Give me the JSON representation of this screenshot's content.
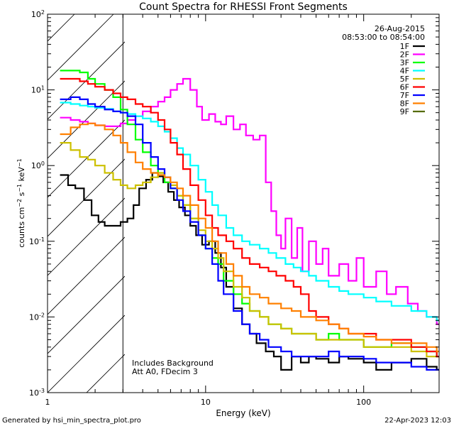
{
  "chart_data": {
    "type": "line",
    "title": "Count Spectra for RHESSI Front Segments",
    "xlabel": "Energy (keV)",
    "ylabel": "counts cm-2 s-1 keV-1",
    "x_scale": "log",
    "y_scale": "log",
    "xlim": [
      1,
      300
    ],
    "ylim": [
      0.001,
      100
    ],
    "x_ticks": [
      {
        "value": 1,
        "label": "1"
      },
      {
        "value": 10,
        "label": "10"
      },
      {
        "value": 100,
        "label": "100"
      }
    ],
    "y_ticks": [
      {
        "value": 100,
        "label": "10",
        "exp": "2"
      },
      {
        "value": 10,
        "label": "10",
        "exp": "1"
      },
      {
        "value": 1,
        "label": "10",
        "exp": "0"
      },
      {
        "value": 0.1,
        "label": "10",
        "exp": "-1"
      },
      {
        "value": 0.01,
        "label": "10",
        "exp": "-2"
      },
      {
        "value": 0.001,
        "label": "10",
        "exp": "-3"
      }
    ],
    "threshold_energy": 3,
    "date": "26-Aug-2015",
    "time_range": "08:53:00 to 08:54:00",
    "annotations": [
      "Includes Background",
      "Att A0, FDecim 3"
    ],
    "series": [
      {
        "name": "1F",
        "color": "#000000",
        "x": [
          1.2,
          1.35,
          1.5,
          1.7,
          1.9,
          2.1,
          2.3,
          2.6,
          2.9,
          3.2,
          3.5,
          3.8,
          4.2,
          4.6,
          5.0,
          5.4,
          5.8,
          6.3,
          6.8,
          7.4,
          8.0,
          8.7,
          9.5,
          10.5,
          11.5,
          12.5,
          13.5,
          15,
          17,
          19,
          21,
          24,
          27,
          30,
          35,
          40,
          45,
          50,
          60,
          70,
          80,
          100,
          120,
          150,
          200,
          250,
          290
        ],
        "y": [
          0.75,
          0.55,
          0.5,
          0.35,
          0.22,
          0.18,
          0.16,
          0.16,
          0.18,
          0.2,
          0.3,
          0.5,
          0.65,
          0.8,
          0.72,
          0.6,
          0.45,
          0.35,
          0.28,
          0.22,
          0.16,
          0.12,
          0.09,
          0.1,
          0.07,
          0.045,
          0.025,
          0.013,
          0.008,
          0.006,
          0.0045,
          0.0035,
          0.003,
          0.002,
          0.003,
          0.0025,
          0.003,
          0.0028,
          0.0025,
          0.003,
          0.0028,
          0.0025,
          0.002,
          0.0025,
          0.0028,
          0.0022,
          0.002
        ]
      },
      {
        "name": "2F",
        "color": "#ff00ff",
        "x": [
          1.2,
          1.4,
          1.6,
          1.8,
          2.0,
          2.3,
          2.6,
          2.9,
          3.2,
          3.6,
          4.0,
          4.5,
          5.0,
          5.5,
          6.0,
          6.6,
          7.2,
          8.0,
          8.8,
          9.5,
          10.5,
          11.5,
          12.5,
          13.5,
          15,
          16.5,
          18,
          20,
          22,
          24,
          26,
          28,
          30,
          32,
          35,
          38,
          41,
          45,
          50,
          55,
          60,
          70,
          80,
          90,
          100,
          120,
          140,
          160,
          190,
          220,
          250,
          290
        ],
        "y": [
          4.3,
          4.0,
          3.8,
          3.6,
          3.4,
          3.3,
          3.3,
          3.6,
          4.0,
          4.5,
          5.2,
          6.0,
          7.0,
          8.0,
          10,
          12,
          14,
          10,
          6,
          4,
          4.8,
          3.8,
          3.5,
          4.5,
          3.0,
          3.5,
          2.5,
          2.2,
          2.5,
          0.6,
          0.25,
          0.12,
          0.08,
          0.2,
          0.06,
          0.15,
          0.04,
          0.1,
          0.05,
          0.08,
          0.035,
          0.05,
          0.03,
          0.06,
          0.025,
          0.04,
          0.02,
          0.025,
          0.015,
          0.012,
          0.01,
          0.008
        ]
      },
      {
        "name": "3F",
        "color": "#00ff00",
        "x": [
          1.2,
          1.4,
          1.6,
          1.8,
          2.0,
          2.3,
          2.6,
          2.9,
          3.2,
          3.6,
          4.0,
          4.5,
          5.0,
          5.5,
          6.0,
          6.6,
          7.2,
          8.0,
          9.0,
          10,
          11,
          12,
          13,
          15,
          17,
          19,
          22,
          25,
          30,
          35,
          40,
          50,
          60,
          70,
          80,
          100,
          120,
          150,
          200,
          250,
          290
        ],
        "y": [
          18,
          18,
          17,
          14,
          12,
          10,
          8,
          5.5,
          3.5,
          2.2,
          1.5,
          1.0,
          0.8,
          0.6,
          0.5,
          0.4,
          0.3,
          0.2,
          0.12,
          0.08,
          0.06,
          0.05,
          0.03,
          0.02,
          0.015,
          0.012,
          0.01,
          0.008,
          0.007,
          0.006,
          0.006,
          0.005,
          0.006,
          0.005,
          0.005,
          0.004,
          0.004,
          0.0045,
          0.004,
          0.0035,
          0.003
        ]
      },
      {
        "name": "4F",
        "color": "#00ffff",
        "x": [
          1.2,
          1.4,
          1.6,
          1.8,
          2.0,
          2.3,
          2.6,
          2.9,
          3.2,
          3.6,
          4.0,
          4.5,
          5.0,
          5.5,
          6.0,
          6.6,
          7.2,
          8.0,
          9.0,
          10,
          11,
          12,
          13.5,
          15,
          17,
          19,
          22,
          25,
          28,
          32,
          36,
          40,
          45,
          50,
          60,
          70,
          80,
          100,
          120,
          150,
          200,
          250,
          290
        ],
        "y": [
          6.8,
          6.5,
          6.2,
          6.0,
          5.8,
          5.6,
          5.2,
          5.0,
          4.8,
          4.5,
          4.2,
          3.8,
          3.3,
          2.8,
          2.3,
          1.7,
          1.4,
          1.0,
          0.65,
          0.45,
          0.3,
          0.22,
          0.15,
          0.12,
          0.1,
          0.09,
          0.08,
          0.07,
          0.06,
          0.05,
          0.045,
          0.04,
          0.035,
          0.03,
          0.025,
          0.022,
          0.02,
          0.018,
          0.016,
          0.014,
          0.012,
          0.01,
          0.009
        ]
      },
      {
        "name": "5F",
        "color": "#ccc000",
        "x": [
          1.2,
          1.4,
          1.6,
          1.8,
          2.0,
          2.3,
          2.6,
          2.9,
          3.2,
          3.6,
          4.0,
          4.5,
          5.0,
          5.5,
          6.0,
          6.6,
          7.2,
          8.0,
          9.0,
          10,
          11,
          12,
          13,
          15,
          17,
          19,
          22,
          25,
          30,
          35,
          40,
          50,
          60,
          70,
          80,
          100,
          120,
          150,
          200,
          250,
          290
        ],
        "y": [
          2.0,
          1.6,
          1.3,
          1.2,
          1.0,
          0.8,
          0.65,
          0.55,
          0.5,
          0.55,
          0.6,
          0.7,
          0.8,
          0.7,
          0.55,
          0.4,
          0.3,
          0.2,
          0.14,
          0.1,
          0.08,
          0.06,
          0.04,
          0.025,
          0.018,
          0.012,
          0.01,
          0.008,
          0.007,
          0.006,
          0.006,
          0.005,
          0.005,
          0.005,
          0.005,
          0.004,
          0.004,
          0.004,
          0.0035,
          0.003,
          0.003
        ]
      },
      {
        "name": "6F",
        "color": "#ff0000",
        "x": [
          1.2,
          1.4,
          1.6,
          1.8,
          2.0,
          2.3,
          2.6,
          2.9,
          3.2,
          3.6,
          4.0,
          4.5,
          5.0,
          5.5,
          6.0,
          6.6,
          7.2,
          8.0,
          9.0,
          10,
          11,
          12,
          13.5,
          15,
          17,
          19,
          22,
          25,
          28,
          32,
          36,
          40,
          45,
          50,
          60,
          70,
          80,
          100,
          120,
          150,
          200,
          250,
          290
        ],
        "y": [
          14,
          14,
          13,
          12,
          11,
          10,
          9,
          8,
          7.5,
          6.5,
          6,
          5,
          4,
          3,
          2,
          1.4,
          0.9,
          0.55,
          0.35,
          0.22,
          0.15,
          0.12,
          0.1,
          0.08,
          0.06,
          0.05,
          0.045,
          0.04,
          0.035,
          0.03,
          0.025,
          0.02,
          0.012,
          0.01,
          0.008,
          0.007,
          0.006,
          0.006,
          0.005,
          0.005,
          0.004,
          0.0035,
          0.003
        ]
      },
      {
        "name": "7F",
        "color": "#0000ff",
        "x": [
          1.2,
          1.4,
          1.6,
          1.8,
          2.0,
          2.3,
          2.6,
          2.9,
          3.2,
          3.6,
          4.0,
          4.5,
          5.0,
          5.5,
          6.0,
          6.6,
          7.2,
          8.0,
          9.0,
          10,
          11,
          12,
          13,
          15,
          17,
          19,
          22,
          25,
          30,
          35,
          40,
          50,
          60,
          70,
          80,
          100,
          120,
          150,
          200,
          250,
          290
        ],
        "y": [
          7.5,
          8.0,
          7.5,
          6.5,
          6.0,
          5.5,
          5.2,
          5.0,
          4.5,
          3.5,
          2.0,
          1.3,
          0.9,
          0.7,
          0.5,
          0.35,
          0.25,
          0.18,
          0.12,
          0.08,
          0.05,
          0.03,
          0.02,
          0.012,
          0.008,
          0.006,
          0.005,
          0.004,
          0.0035,
          0.003,
          0.003,
          0.003,
          0.0035,
          0.003,
          0.003,
          0.0028,
          0.0025,
          0.0025,
          0.0022,
          0.002,
          0.002
        ]
      },
      {
        "name": "8F",
        "color": "#ff8000",
        "x": [
          1.2,
          1.4,
          1.6,
          1.8,
          2.0,
          2.3,
          2.6,
          2.9,
          3.2,
          3.6,
          4.0,
          4.5,
          5.0,
          5.5,
          6.0,
          6.6,
          7.2,
          8.0,
          9.0,
          10,
          11,
          12,
          13.5,
          15,
          17,
          19,
          22,
          25,
          30,
          35,
          40,
          50,
          60,
          70,
          80,
          100,
          120,
          150,
          200,
          250,
          290
        ],
        "y": [
          2.6,
          3.2,
          3.5,
          3.6,
          3.4,
          3.0,
          2.5,
          2.0,
          1.5,
          1.1,
          0.9,
          0.8,
          0.75,
          0.7,
          0.6,
          0.5,
          0.4,
          0.3,
          0.2,
          0.15,
          0.1,
          0.07,
          0.05,
          0.035,
          0.025,
          0.02,
          0.018,
          0.015,
          0.013,
          0.012,
          0.01,
          0.009,
          0.008,
          0.007,
          0.006,
          0.0055,
          0.005,
          0.0045,
          0.0045,
          0.004,
          0.0035
        ]
      },
      {
        "name": "9F",
        "color": "#556b00",
        "x": [],
        "y": []
      }
    ]
  },
  "footer": {
    "left": "Generated by hsi_min_spectra_plot.pro",
    "right": "22-Apr-2023 12:03"
  }
}
